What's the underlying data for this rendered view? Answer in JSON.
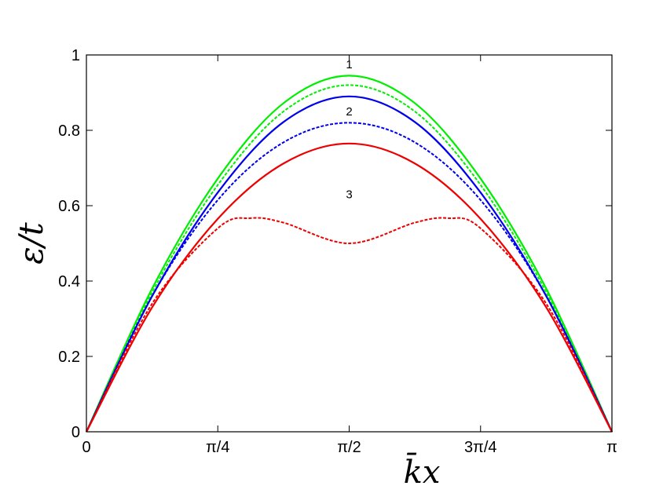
{
  "chart_data": {
    "type": "line",
    "xlabel": "k̄x",
    "ylabel": "ε/t",
    "xlim": [
      0,
      3.14159
    ],
    "ylim": [
      0,
      1
    ],
    "x_ticks": [
      {
        "value": 0,
        "label": "0"
      },
      {
        "value": 0.7854,
        "label": "π/4"
      },
      {
        "value": 1.5708,
        "label": "π/2"
      },
      {
        "value": 2.3562,
        "label": "3π/4"
      },
      {
        "value": 3.14159,
        "label": "π"
      }
    ],
    "y_ticks": [
      {
        "value": 0,
        "label": "0"
      },
      {
        "value": 0.2,
        "label": "0.2"
      },
      {
        "value": 0.4,
        "label": "0.4"
      },
      {
        "value": 0.6,
        "label": "0.6"
      },
      {
        "value": 0.8,
        "label": "0.8"
      },
      {
        "value": 1,
        "label": "1"
      }
    ],
    "series": [
      {
        "color": "#00ee00",
        "style": "solid",
        "x": [
          0,
          0.3927,
          0.7854,
          1.1781,
          1.5708,
          1.9635,
          2.3562,
          2.7489,
          3.14159
        ],
        "y": [
          0,
          0.38,
          0.672,
          0.872,
          0.945,
          0.872,
          0.672,
          0.38,
          0
        ]
      },
      {
        "color": "#00ee00",
        "style": "dashed",
        "x": [
          0,
          0.3927,
          0.7854,
          1.1781,
          1.5708,
          1.9635,
          2.3562,
          2.7489,
          3.14159
        ],
        "y": [
          0,
          0.37,
          0.655,
          0.85,
          0.92,
          0.85,
          0.655,
          0.37,
          0
        ]
      },
      {
        "color": "#0000ee",
        "style": "solid",
        "x": [
          0,
          0.3927,
          0.7854,
          1.1781,
          1.5708,
          1.9635,
          2.3562,
          2.7489,
          3.14159
        ],
        "y": [
          0,
          0.36,
          0.635,
          0.822,
          0.89,
          0.822,
          0.635,
          0.36,
          0
        ]
      },
      {
        "color": "#0000ee",
        "style": "dashed",
        "x": [
          0,
          0.3927,
          0.7854,
          1.1781,
          1.5708,
          1.9635,
          2.3562,
          2.7489,
          3.14159
        ],
        "y": [
          0,
          0.36,
          0.615,
          0.768,
          0.82,
          0.768,
          0.615,
          0.36,
          0
        ]
      },
      {
        "color": "#ee0000",
        "style": "solid",
        "x": [
          0,
          0.3927,
          0.7854,
          1.1781,
          1.5708,
          1.9635,
          2.3562,
          2.7489,
          3.14159
        ],
        "y": [
          0,
          0.33,
          0.565,
          0.712,
          0.765,
          0.712,
          0.565,
          0.33,
          0
        ]
      },
      {
        "color": "#ee0000",
        "style": "dashed",
        "x": [
          0,
          0.3927,
          0.7854,
          0.9817,
          1.1781,
          1.5708,
          1.9635,
          2.1598,
          2.3562,
          2.7489,
          3.14159
        ],
        "y": [
          0,
          0.34,
          0.54,
          0.567,
          0.555,
          0.5,
          0.555,
          0.567,
          0.54,
          0.34,
          0
        ]
      }
    ],
    "annotations": [
      {
        "text": "1",
        "x": 1.5708,
        "y": 0.965
      },
      {
        "text": "2",
        "x": 1.5708,
        "y": 0.84
      },
      {
        "text": "3",
        "x": 1.5708,
        "y": 0.62
      }
    ]
  }
}
